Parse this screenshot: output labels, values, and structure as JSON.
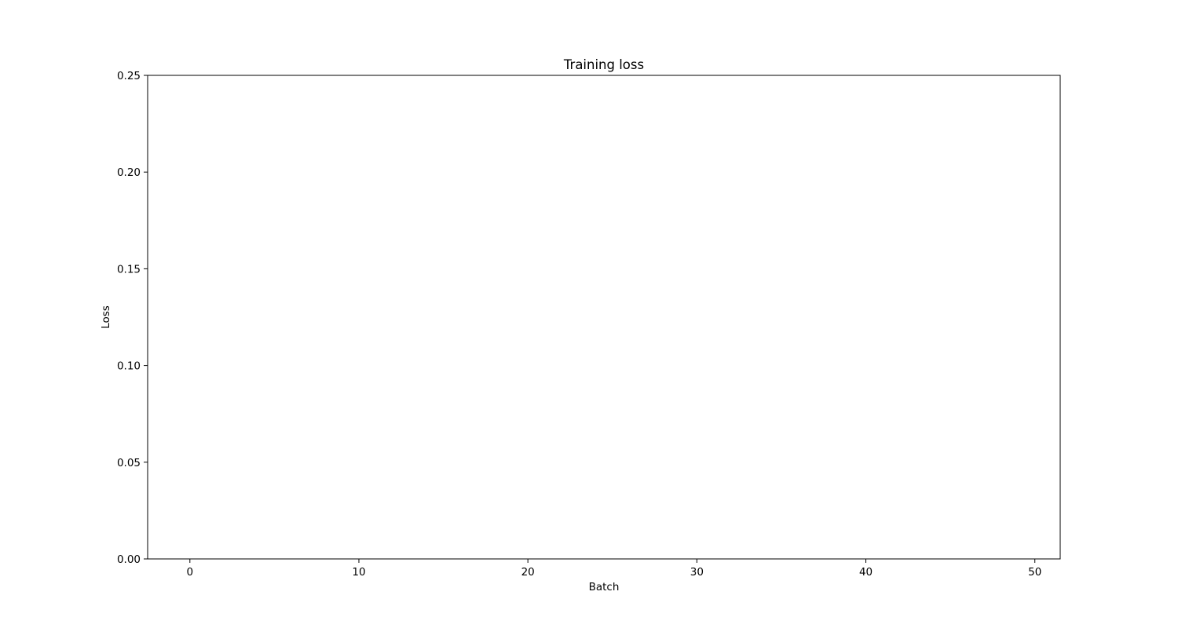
{
  "chart_data": {
    "type": "line",
    "title": "Training loss",
    "xlabel": "Batch",
    "ylabel": "Loss",
    "xlim": [
      -2.5,
      51.5
    ],
    "ylim": [
      0,
      0.25
    ],
    "x_ticks": [
      0,
      10,
      20,
      30,
      40,
      50
    ],
    "x_tick_labels": [
      "0",
      "10",
      "20",
      "30",
      "40",
      "50"
    ],
    "y_ticks": [
      0,
      0.05,
      0.1,
      0.15,
      0.2,
      0.25
    ],
    "y_tick_labels": [
      "0.00",
      "0.05",
      "0.10",
      "0.15",
      "0.20",
      "0.25"
    ],
    "grid": false,
    "legend": "none",
    "series": []
  }
}
